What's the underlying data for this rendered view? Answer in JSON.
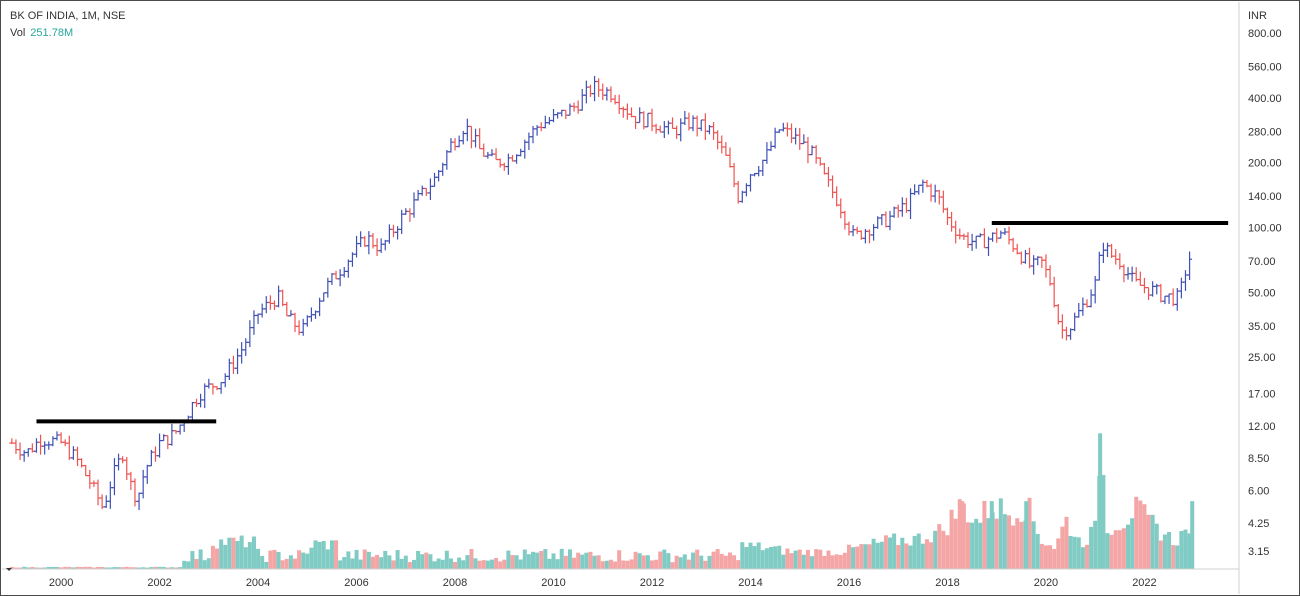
{
  "header": {
    "symbol_line": "BK OF INDIA, 1M, NSE",
    "volume_label": "Vol",
    "volume_value": "251.78M"
  },
  "colors": {
    "up": "#3f51b5",
    "down": "#ef5350",
    "volume_up": "#80cbc4",
    "volume_down": "#f4a6a6",
    "resistance_line": "#000000"
  },
  "chart_data": {
    "type": "ohlc",
    "title": "BK OF INDIA, 1M, NSE",
    "currency_label": "INR",
    "y_scale": "log",
    "ylim": [
      2.8,
      960
    ],
    "xlim": [
      1998.8,
      2023.9
    ],
    "grid": false,
    "y_ticks": [
      "800.00",
      "560.00",
      "400.00",
      "280.00",
      "200.00",
      "140.00",
      "100.00",
      "70.00",
      "50.00",
      "35.00",
      "25.00",
      "17.00",
      "12.00",
      "8.50",
      "6.00",
      "4.25",
      "3.15"
    ],
    "x_ticks": [
      "2000",
      "2002",
      "2004",
      "2006",
      "2008",
      "2010",
      "2012",
      "2014",
      "2016",
      "2018",
      "2020",
      "2022"
    ],
    "price_path": [
      [
        1999.0,
        10
      ],
      [
        1999.3,
        9
      ],
      [
        1999.6,
        10.5
      ],
      [
        2000.0,
        10
      ],
      [
        2000.3,
        8.5
      ],
      [
        2000.6,
        6.5
      ],
      [
        2000.85,
        5
      ],
      [
        2001.05,
        7
      ],
      [
        2001.25,
        9
      ],
      [
        2001.4,
        6.5
      ],
      [
        2001.55,
        5.5
      ],
      [
        2001.7,
        7.5
      ],
      [
        2002.0,
        10
      ],
      [
        2002.3,
        11
      ],
      [
        2002.5,
        13
      ],
      [
        2002.8,
        17
      ],
      [
        2003.3,
        20
      ],
      [
        2003.7,
        28
      ],
      [
        2004.0,
        40
      ],
      [
        2004.4,
        48
      ],
      [
        2004.6,
        38
      ],
      [
        2004.9,
        33
      ],
      [
        2005.3,
        50
      ],
      [
        2005.8,
        70
      ],
      [
        2006.2,
        90
      ],
      [
        2006.5,
        80
      ],
      [
        2006.9,
        110
      ],
      [
        2007.3,
        140
      ],
      [
        2007.6,
        170
      ],
      [
        2007.9,
        240
      ],
      [
        2008.2,
        300
      ],
      [
        2008.5,
        230
      ],
      [
        2008.8,
        200
      ],
      [
        2009.1,
        210
      ],
      [
        2009.4,
        250
      ],
      [
        2009.7,
        300
      ],
      [
        2010.0,
        320
      ],
      [
        2010.4,
        360
      ],
      [
        2010.8,
        450
      ],
      [
        2011.2,
        420
      ],
      [
        2011.6,
        330
      ],
      [
        2012.0,
        310
      ],
      [
        2012.4,
        280
      ],
      [
        2012.8,
        310
      ],
      [
        2013.2,
        280
      ],
      [
        2013.5,
        210
      ],
      [
        2013.75,
        140
      ],
      [
        2014.0,
        180
      ],
      [
        2014.3,
        210
      ],
      [
        2014.6,
        290
      ],
      [
        2014.9,
        260
      ],
      [
        2015.2,
        230
      ],
      [
        2015.5,
        170
      ],
      [
        2015.8,
        130
      ],
      [
        2016.1,
        90
      ],
      [
        2016.4,
        100
      ],
      [
        2016.8,
        110
      ],
      [
        2017.2,
        130
      ],
      [
        2017.5,
        160
      ],
      [
        2017.8,
        140
      ],
      [
        2018.0,
        110
      ],
      [
        2018.3,
        90
      ],
      [
        2018.6,
        85
      ],
      [
        2018.9,
        90
      ],
      [
        2019.1,
        95
      ],
      [
        2019.4,
        80
      ],
      [
        2019.7,
        65
      ],
      [
        2019.9,
        70
      ],
      [
        2020.1,
        55
      ],
      [
        2020.3,
        33
      ],
      [
        2020.5,
        35
      ],
      [
        2020.8,
        45
      ],
      [
        2021.0,
        55
      ],
      [
        2021.15,
        85
      ],
      [
        2021.3,
        75
      ],
      [
        2021.5,
        70
      ],
      [
        2021.8,
        55
      ],
      [
        2022.1,
        52
      ],
      [
        2022.4,
        48
      ],
      [
        2022.7,
        47
      ],
      [
        2022.85,
        65
      ],
      [
        2022.95,
        76
      ]
    ],
    "volume": [
      [
        2013.8,
        11,
        false
      ],
      [
        2014.3,
        10,
        true
      ],
      [
        2014.8,
        8,
        false
      ],
      [
        2015.3,
        8,
        true
      ],
      [
        2015.8,
        8,
        false
      ],
      [
        2016.4,
        11,
        true
      ],
      [
        2016.8,
        13,
        true
      ],
      [
        2017.4,
        14,
        false
      ],
      [
        2017.9,
        18,
        false
      ],
      [
        2018.3,
        30,
        false
      ],
      [
        2018.6,
        22,
        true
      ],
      [
        2018.9,
        30,
        true
      ],
      [
        2019.2,
        26,
        false
      ],
      [
        2019.6,
        30,
        true
      ],
      [
        2019.9,
        14,
        true
      ],
      [
        2020.2,
        10,
        false
      ],
      [
        2020.4,
        23,
        true
      ],
      [
        2020.7,
        12,
        false
      ],
      [
        2021.0,
        18,
        true
      ],
      [
        2021.1,
        60,
        true
      ],
      [
        2021.25,
        20,
        false
      ],
      [
        2021.6,
        23,
        false
      ],
      [
        2021.8,
        28,
        true
      ],
      [
        2022.2,
        20,
        false
      ],
      [
        2022.6,
        13,
        true
      ],
      [
        2022.9,
        18,
        true
      ],
      [
        2022.97,
        30,
        true
      ]
    ],
    "resistance_lines": [
      {
        "x1": 1999.5,
        "x2": 2003.15,
        "y": 12.6
      },
      {
        "x1": 2018.9,
        "x2": 2023.7,
        "y": 105
      }
    ]
  }
}
